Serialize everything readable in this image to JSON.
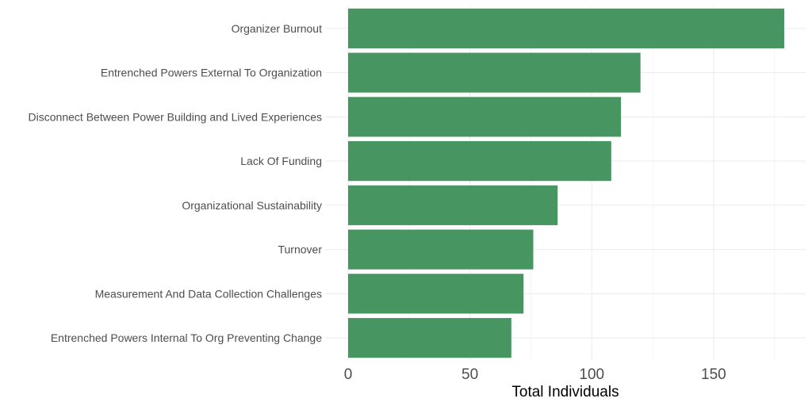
{
  "chart_data": {
    "type": "bar",
    "orientation": "horizontal",
    "categories": [
      "Organizer Burnout",
      "Entrenched Powers External To Organization",
      "Disconnect Between Power Building and Lived Experiences",
      "Lack Of Funding",
      "Organizational Sustainability",
      "Turnover",
      "Measurement And Data Collection Challenges",
      "Entrenched Powers Internal To Org Preventing Change"
    ],
    "values": [
      179,
      120,
      112,
      108,
      86,
      76,
      72,
      67
    ],
    "xlabel": "Total Individuals",
    "ylabel": "",
    "xlim": [
      0,
      188
    ],
    "x_ticks": [
      0,
      50,
      100,
      150
    ],
    "x_tick_labels": [
      "0",
      "50",
      "100",
      "150"
    ],
    "grid": true,
    "bar_color": "#479661"
  }
}
